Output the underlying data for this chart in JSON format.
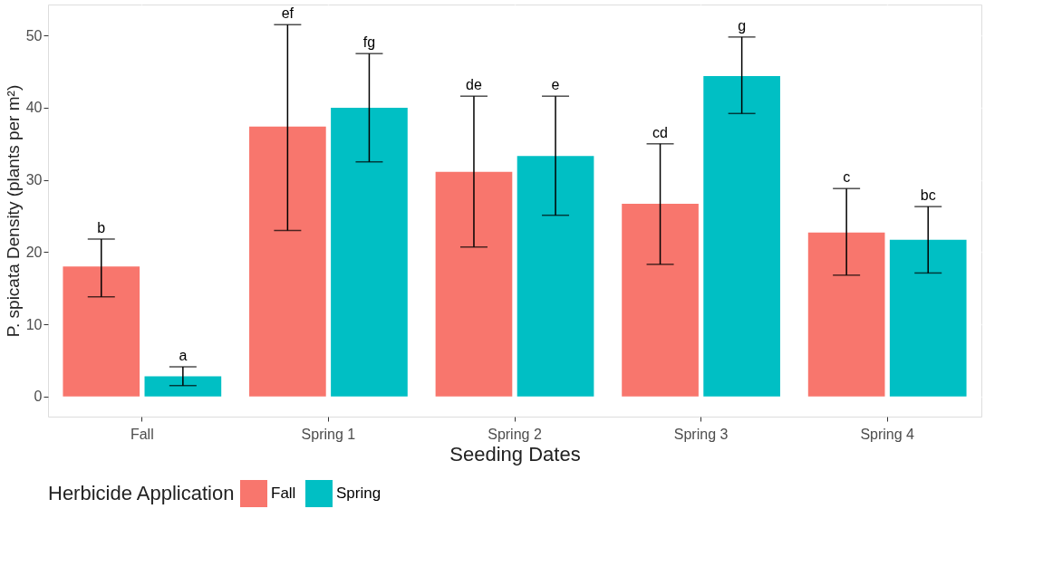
{
  "chart_data": {
    "type": "bar",
    "xlabel": "Seeding Dates",
    "ylabel": "P. spicata Density (plants per m²)",
    "legend_title": "Herbicide Application",
    "legend": "bottom",
    "grid": true,
    "annotations": [
      "b",
      "a",
      "ef",
      "fg",
      "de",
      "e",
      "cd",
      "g",
      "c",
      "bc"
    ],
    "categories": [
      "Fall",
      "Spring 1",
      "Spring 2",
      "Spring 3",
      "Spring 4"
    ],
    "ylim": [
      -2.8,
      54.3
    ],
    "yticks": [
      0,
      10,
      20,
      30,
      40,
      50
    ],
    "series": [
      {
        "name": "Fall",
        "color": "#f8766d",
        "values": [
          18.0,
          37.4,
          31.1,
          26.7,
          22.7
        ],
        "errors": [
          [
            13.8,
            21.8
          ],
          [
            23.0,
            51.5
          ],
          [
            20.7,
            41.6
          ],
          [
            18.3,
            35.0
          ],
          [
            16.8,
            28.8
          ]
        ]
      },
      {
        "name": "Spring",
        "color": "#00bfc4",
        "values": [
          2.8,
          40.0,
          33.3,
          44.4,
          21.7
        ],
        "errors": [
          [
            1.5,
            4.1
          ],
          [
            32.5,
            47.5
          ],
          [
            25.1,
            41.6
          ],
          [
            39.2,
            49.8
          ],
          [
            17.1,
            26.3
          ]
        ]
      }
    ]
  }
}
